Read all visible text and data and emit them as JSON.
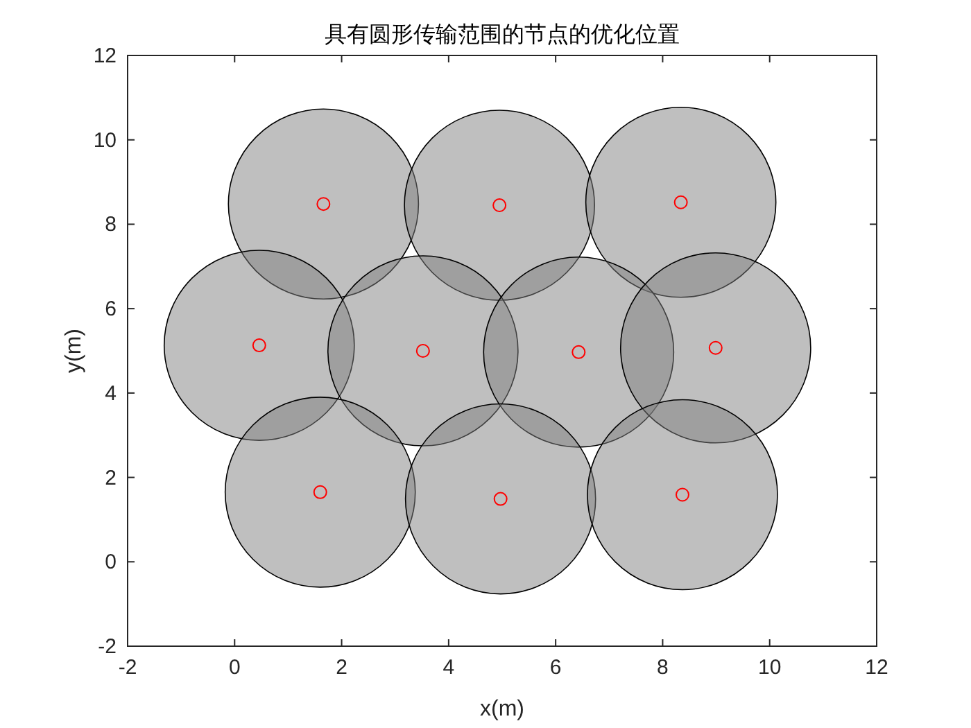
{
  "chart_data": {
    "type": "bubble",
    "title": "具有圆形传输范围的节点的优化位置",
    "xlabel": "x(m)",
    "ylabel": "y(m)",
    "x": [
      1.66,
      4.95,
      8.34,
      0.46,
      3.52,
      6.43,
      8.99,
      1.6,
      4.97,
      8.37
    ],
    "xlim": [
      -2,
      12
    ],
    "ylim": [
      -2,
      12
    ],
    "xticks": [
      -2,
      0,
      2,
      4,
      6,
      8,
      10,
      12
    ],
    "yticks": [
      -2,
      0,
      2,
      4,
      6,
      8,
      10,
      12
    ],
    "series": [
      {
        "color": "#808080",
        "values": [
          8.48,
          8.45,
          8.52,
          5.13,
          5.0,
          4.97,
          5.07,
          1.65,
          1.49,
          1.59
        ],
        "sizes": [
          1,
          1,
          1,
          1,
          1,
          1,
          1,
          1,
          1,
          1
        ]
      },
      {
        "type": "scatter",
        "color": "#ff0000",
        "marker": "circle",
        "values": [
          8.48,
          8.45,
          8.52,
          5.13,
          5.0,
          4.97,
          5.07,
          1.65,
          1.49,
          1.59
        ]
      }
    ]
  }
}
